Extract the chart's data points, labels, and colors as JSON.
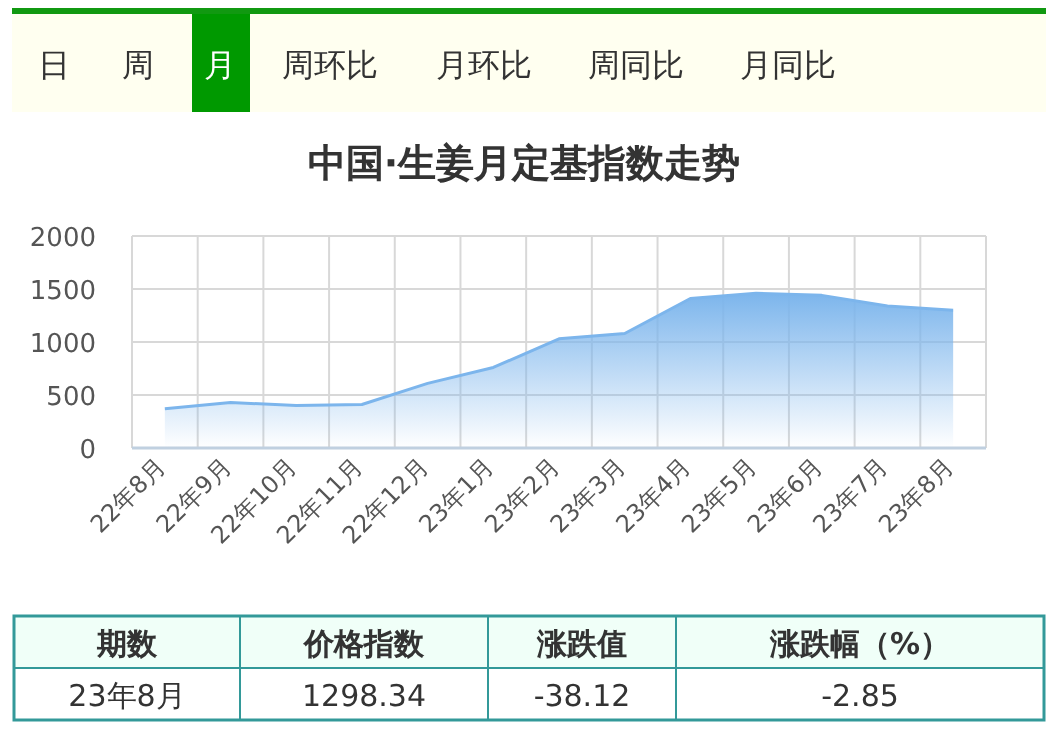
{
  "chart_data": {
    "type": "area",
    "title": "中国·生姜月定基指数走势",
    "categories": [
      "22年8月",
      "22年9月",
      "22年10月",
      "22年11月",
      "22年12月",
      "23年1月",
      "23年2月",
      "23年3月",
      "23年4月",
      "23年5月",
      "23年6月",
      "23年7月",
      "23年8月"
    ],
    "series": [
      {
        "color": "#7cb5ec",
        "values": [
          370,
          430,
          400,
          410,
          610,
          760,
          1030,
          1080,
          1410,
          1460,
          1440,
          1340,
          1300
        ]
      }
    ],
    "ylim": [
      0,
      2000
    ],
    "yticks": [
      0,
      500,
      1000,
      1500,
      2000
    ],
    "grid": true,
    "annotations": [
      "日",
      "周",
      "月",
      "周环比",
      "月环比",
      "周同比",
      "月同比",
      "期数",
      "价格指数",
      "涨跌值",
      "涨跌幅（%）",
      "23年8月",
      "1298.34",
      "-38.12",
      "-2.85"
    ]
  }
}
